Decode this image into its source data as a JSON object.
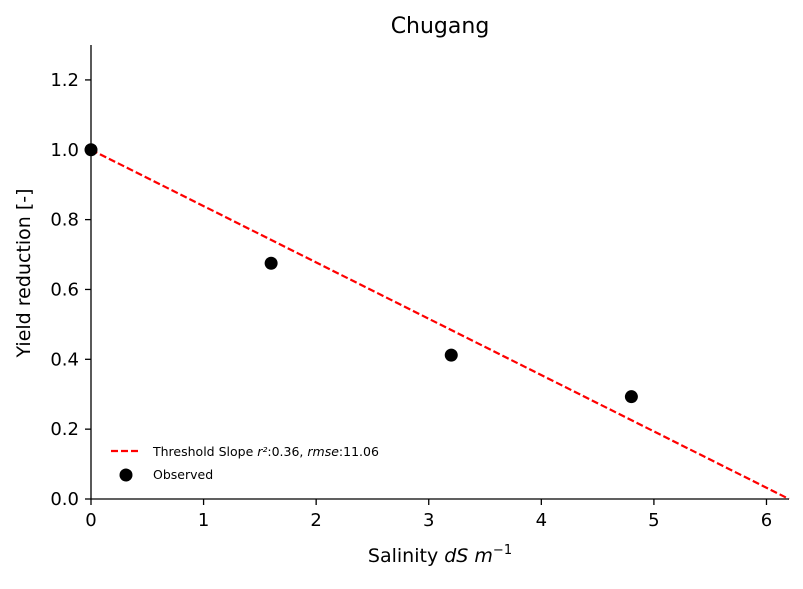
{
  "chart_data": {
    "type": "scatter",
    "title": "Chugang",
    "xlabel": {
      "prefix": "Salinity ",
      "var1": "dS",
      "var2": "m",
      "superscript": "−1"
    },
    "ylabel": "Yield reduction [-]",
    "xlim": [
      0,
      6.2
    ],
    "ylim": [
      0,
      1.3
    ],
    "xticks": [
      0,
      1,
      2,
      3,
      4,
      5,
      6
    ],
    "yticks": [
      0.0,
      0.2,
      0.4,
      0.6,
      0.8,
      1.0,
      1.2
    ],
    "xtick_labels": [
      "0",
      "1",
      "2",
      "3",
      "4",
      "5",
      "6"
    ],
    "ytick_labels": [
      "0.0",
      "0.2",
      "0.4",
      "0.6",
      "0.8",
      "1.0",
      "1.2"
    ],
    "grid": false,
    "legend_position": "lower-left",
    "series": [
      {
        "name": "Observed",
        "kind": "scatter",
        "color": "#000000",
        "x": [
          0,
          1.6,
          3.2,
          4.8
        ],
        "y": [
          1.0,
          0.675,
          0.412,
          0.293
        ]
      },
      {
        "name": "Threshold Slope",
        "kind": "line",
        "style": "dashed",
        "color": "#ff0000",
        "x": [
          0,
          6.2
        ],
        "y": [
          1.0,
          0.0
        ]
      }
    ],
    "legend": {
      "line_label": {
        "prefix": "Threshold Slope ",
        "r2_name": "r²",
        "r2_value": ":0.36, ",
        "rmse_name": "rmse",
        "rmse_value": ":11.06"
      },
      "scatter_label": "Observed"
    }
  }
}
